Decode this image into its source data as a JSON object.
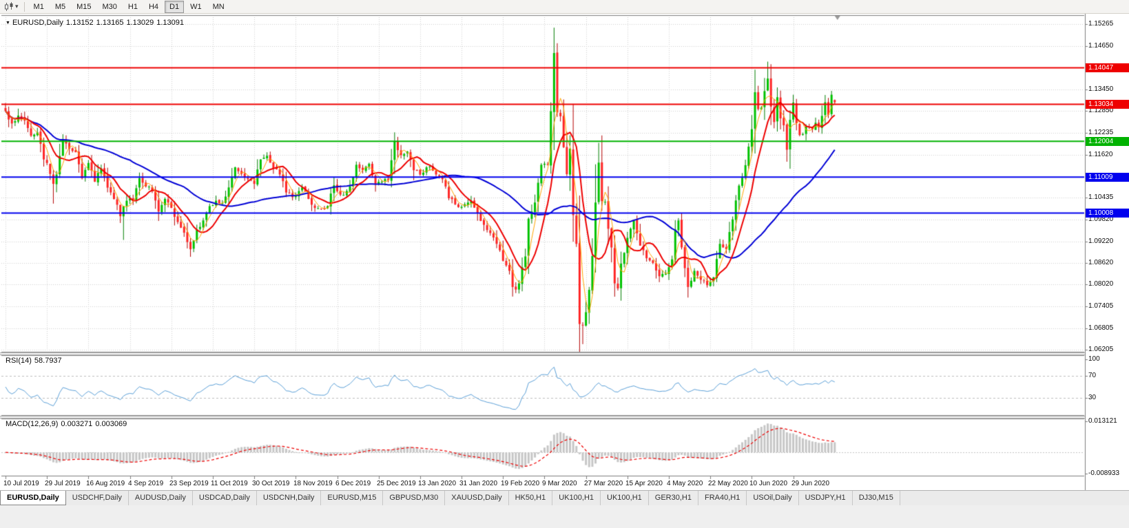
{
  "toolbar": {
    "timeframes": {
      "items": [
        "M1",
        "M5",
        "M15",
        "M30",
        "H1",
        "H4",
        "D1",
        "W1",
        "MN"
      ],
      "active": "D1"
    }
  },
  "main_chart": {
    "header": {
      "symbol": "EURUSD,Daily",
      "open": "1.13152",
      "high": "1.13165",
      "low": "1.13029",
      "close": "1.13091"
    }
  },
  "chart_data": {
    "type": "candlestick",
    "symbol": "EURUSD",
    "timeframe": "Daily",
    "bars": 261,
    "bars_per_label": 13,
    "price_axis": {
      "top_price": 1.15265,
      "bottom_price": 1.06205,
      "tick_labels": [
        "1.15265",
        "1.14650",
        "1.13450",
        "1.12850",
        "1.12235",
        "1.11620",
        "1.10435",
        "1.09820",
        "1.09220",
        "1.08620",
        "1.08020",
        "1.07405",
        "1.06805",
        "1.06205"
      ]
    },
    "x_axis_dates": [
      "10 Jul 2019",
      "29 Jul 2019",
      "16 Aug 2019",
      "4 Sep 2019",
      "23 Sep 2019",
      "11 Oct 2019",
      "30 Oct 2019",
      "18 Nov 2019",
      "6 Dec 2019",
      "25 Dec 2019",
      "13 Jan 2020",
      "31 Jan 2020",
      "19 Feb 2020",
      "9 Mar 2020",
      "27 Mar 2020",
      "15 Apr 2020",
      "4 May 2020",
      "22 May 2020",
      "10 Jun 2020",
      "29 Jun 2020"
    ],
    "horizontal_lines": [
      {
        "price": 1.14047,
        "label": "1.14047",
        "color": "#ee0000"
      },
      {
        "price": 1.13034,
        "label": "1.13034",
        "color": "#ee0000"
      },
      {
        "price": 1.12004,
        "label": "1.12004",
        "color": "#00b200"
      },
      {
        "price": 1.11009,
        "label": "1.11009",
        "color": "#0000ee"
      },
      {
        "price": 1.10008,
        "label": "1.10008",
        "color": "#0000ee"
      }
    ],
    "close_anchors": [
      [
        0,
        1.1285
      ],
      [
        2,
        1.125
      ],
      [
        4,
        1.1272
      ],
      [
        6,
        1.1258
      ],
      [
        8,
        1.1216
      ],
      [
        10,
        1.1225
      ],
      [
        12,
        1.115
      ],
      [
        13,
        1.114
      ],
      [
        15,
        1.1082
      ],
      [
        16,
        1.1108
      ],
      [
        18,
        1.1203
      ],
      [
        20,
        1.118
      ],
      [
        22,
        1.117
      ],
      [
        24,
        1.1098
      ],
      [
        26,
        1.114
      ],
      [
        28,
        1.1088
      ],
      [
        30,
        1.1125
      ],
      [
        33,
        1.1058
      ],
      [
        36,
        1.0992
      ],
      [
        38,
        1.1035
      ],
      [
        40,
        1.1035
      ],
      [
        42,
        1.1098
      ],
      [
        44,
        1.1075
      ],
      [
        46,
        1.1062
      ],
      [
        48,
        1.1005
      ],
      [
        50,
        1.104
      ],
      [
        52,
        1.1015
      ],
      [
        53,
        1.099
      ],
      [
        55,
        1.096
      ],
      [
        57,
        1.092
      ],
      [
        58,
        1.09
      ],
      [
        60,
        1.0955
      ],
      [
        62,
        1.098
      ],
      [
        64,
        1.102
      ],
      [
        66,
        1.1035
      ],
      [
        68,
        1.1028
      ],
      [
        70,
        1.1072
      ],
      [
        72,
        1.1128
      ],
      [
        74,
        1.111
      ],
      [
        76,
        1.1095
      ],
      [
        78,
        1.1082
      ],
      [
        80,
        1.115
      ],
      [
        82,
        1.116
      ],
      [
        84,
        1.1125
      ],
      [
        86,
        1.1108
      ],
      [
        88,
        1.1058
      ],
      [
        90,
        1.1045
      ],
      [
        92,
        1.1062
      ],
      [
        93,
        1.1072
      ],
      [
        95,
        1.104
      ],
      [
        97,
        1.1015
      ],
      [
        99,
        1.1012
      ],
      [
        101,
        1.102
      ],
      [
        103,
        1.1078
      ],
      [
        105,
        1.1052
      ],
      [
        107,
        1.1062
      ],
      [
        109,
        1.11
      ],
      [
        110,
        1.1135
      ],
      [
        112,
        1.112
      ],
      [
        114,
        1.1138
      ],
      [
        116,
        1.108
      ],
      [
        118,
        1.1088
      ],
      [
        120,
        1.1092
      ],
      [
        122,
        1.12
      ],
      [
        124,
        1.1162
      ],
      [
        126,
        1.1172
      ],
      [
        128,
        1.112
      ],
      [
        130,
        1.1108
      ],
      [
        132,
        1.1128
      ],
      [
        133,
        1.113
      ],
      [
        135,
        1.1108
      ],
      [
        137,
        1.1095
      ],
      [
        139,
        1.1042
      ],
      [
        141,
        1.1025
      ],
      [
        143,
        1.1018
      ],
      [
        145,
        1.103
      ],
      [
        146,
        1.1035
      ],
      [
        148,
        1.1
      ],
      [
        150,
        1.0968
      ],
      [
        152,
        1.0945
      ],
      [
        154,
        1.0915
      ],
      [
        156,
        1.0868
      ],
      [
        158,
        1.084
      ],
      [
        159,
        1.0795
      ],
      [
        160,
        1.0788
      ],
      [
        161,
        1.0805
      ],
      [
        162,
        1.085
      ],
      [
        163,
        1.088
      ],
      [
        164,
        1.0985
      ],
      [
        165,
        1.1005
      ],
      [
        166,
        1.103
      ],
      [
        167,
        1.1085
      ],
      [
        168,
        1.1135
      ],
      [
        169,
        1.1138
      ],
      [
        170,
        1.1135
      ],
      [
        171,
        1.1284
      ],
      [
        172,
        1.1446
      ],
      [
        173,
        1.1281
      ],
      [
        174,
        1.127
      ],
      [
        175,
        1.1184
      ],
      [
        176,
        1.1109
      ],
      [
        177,
        1.118
      ],
      [
        178,
        1.0995
      ],
      [
        179,
        1.0915
      ],
      [
        180,
        1.0692
      ],
      [
        181,
        1.0688
      ],
      [
        182,
        1.0725
      ],
      [
        183,
        1.0787
      ],
      [
        184,
        1.0881
      ],
      [
        185,
        1.103
      ],
      [
        186,
        1.1141
      ],
      [
        187,
        1.1034
      ],
      [
        188,
        1.1032
      ],
      [
        189,
        1.0957
      ],
      [
        190,
        1.0905
      ],
      [
        191,
        1.0805
      ],
      [
        192,
        1.0791
      ],
      [
        193,
        1.086
      ],
      [
        194,
        1.089
      ],
      [
        195,
        1.0932
      ],
      [
        197,
        1.098
      ],
      [
        199,
        1.091
      ],
      [
        201,
        1.0875
      ],
      [
        203,
        1.0862
      ],
      [
        205,
        1.0825
      ],
      [
        207,
        1.0832
      ],
      [
        209,
        1.0872
      ],
      [
        210,
        1.0955
      ],
      [
        211,
        1.098
      ],
      [
        212,
        1.0905
      ],
      [
        214,
        1.0795
      ],
      [
        216,
        1.084
      ],
      [
        218,
        1.0815
      ],
      [
        220,
        1.08
      ],
      [
        222,
        1.0822
      ],
      [
        224,
        1.0915
      ],
      [
        226,
        1.09
      ],
      [
        228,
        1.0983
      ],
      [
        230,
        1.1077
      ],
      [
        232,
        1.1134
      ],
      [
        234,
        1.1234
      ],
      [
        235,
        1.1337
      ],
      [
        236,
        1.129
      ],
      [
        237,
        1.1294
      ],
      [
        238,
        1.134
      ],
      [
        239,
        1.1375
      ],
      [
        240,
        1.1297
      ],
      [
        241,
        1.1254
      ],
      [
        242,
        1.1323
      ],
      [
        243,
        1.1264
      ],
      [
        244,
        1.1245
      ],
      [
        245,
        1.1177
      ],
      [
        246,
        1.126
      ],
      [
        247,
        1.1308
      ],
      [
        248,
        1.1251
      ],
      [
        249,
        1.1218
      ],
      [
        250,
        1.122
      ],
      [
        251,
        1.1241
      ],
      [
        252,
        1.124
      ],
      [
        253,
        1.1234
      ],
      [
        254,
        1.1252
      ],
      [
        255,
        1.1239
      ],
      [
        256,
        1.1271
      ],
      [
        257,
        1.1309
      ],
      [
        258,
        1.1274
      ],
      [
        259,
        1.133
      ],
      [
        260,
        1.1309
      ]
    ],
    "spikes": [
      {
        "i": 15,
        "low": 1.1027
      },
      {
        "i": 37,
        "low": 1.0926
      },
      {
        "i": 58,
        "low": 1.0879
      },
      {
        "i": 160,
        "low": 1.0778
      },
      {
        "i": 172,
        "high": 1.1495
      },
      {
        "i": 181,
        "low": 1.0636
      },
      {
        "i": 239,
        "high": 1.1422
      }
    ],
    "moving_averages": [
      {
        "period": 40,
        "type": "sma",
        "color": "#0000d6",
        "width": 2
      },
      {
        "period": 9,
        "type": "sma",
        "color": "#ee0000",
        "width": 2
      },
      {
        "period": 4,
        "type": "sma",
        "color": "#ffa500",
        "width": 1
      }
    ],
    "rsi": {
      "name": "RSI(14)",
      "value": "58.7937",
      "period": 14,
      "levels": [
        70,
        30
      ],
      "scale_labels": [
        "100",
        "70",
        "30"
      ],
      "color": "#5ba0d8"
    },
    "macd": {
      "name": "MACD(12,26,9)",
      "value": "0.003271",
      "signal_value": "0.003069",
      "fast": 12,
      "slow": 26,
      "signal": 9,
      "scale_top": "0.013121",
      "scale_bottom": "-0.008933"
    },
    "colors": {
      "background": "#ffffff",
      "frame": "#7d7d7d",
      "grid": "#cfcfcf",
      "bull": "#00c200",
      "bull_border": "#007d00",
      "bear": "#ff2424",
      "bear_border": "#b40000",
      "macd_hist": "#c6c6c6",
      "macd_signal": "#ee0000",
      "shift_marker": "#9a9a9a"
    }
  },
  "tabs": {
    "items": [
      "EURUSD,Daily",
      "USDCHF,Daily",
      "AUDUSD,Daily",
      "USDCAD,Daily",
      "USDCNH,Daily",
      "EURUSD,M15",
      "GBPUSD,M30",
      "XAUUSD,Daily",
      "HK50,H1",
      "UK100,H1",
      "UK100,H1",
      "GER30,H1",
      "FRA40,H1",
      "USOil,Daily",
      "USDJPY,H1",
      "DJ30,M15"
    ],
    "active_index": 0
  }
}
